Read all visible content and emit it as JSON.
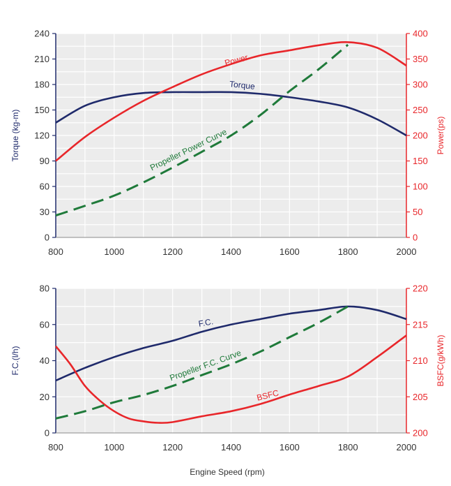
{
  "xlabel": "Engine Speed (rpm)",
  "colors": {
    "plot_bg": "#ececec",
    "grid": "#ffffff",
    "navy": "#1f2a6b",
    "red": "#e8262a",
    "green": "#1f7a3a",
    "axis_text": "#333333"
  },
  "chart_data": [
    {
      "type": "line",
      "x_ticks": [
        "800",
        "1000",
        "1200",
        "1400",
        "1600",
        "1800",
        "2000"
      ],
      "xlim": [
        800,
        2000
      ],
      "ylabel_left": "Torque (kg-m)",
      "ylabel_right": "Power(ps)",
      "ylim_left": [
        0,
        240
      ],
      "ylim_right": [
        0,
        400
      ],
      "y_ticks_left": [
        "0",
        "30",
        "60",
        "90",
        "120",
        "150",
        "180",
        "210",
        "240"
      ],
      "y_ticks_right": [
        "0",
        "50",
        "100",
        "150",
        "200",
        "250",
        "300",
        "350",
        "400"
      ],
      "grid": true,
      "series": [
        {
          "name": "Torque",
          "axis": "left",
          "style": "solid",
          "color": "#1f2a6b",
          "x": [
            800,
            900,
            1000,
            1100,
            1200,
            1300,
            1400,
            1500,
            1600,
            1700,
            1800,
            1900,
            2000
          ],
          "y": [
            135,
            155,
            165,
            170,
            171,
            171,
            171,
            169,
            165,
            160,
            153,
            139,
            120
          ]
        },
        {
          "name": "Power",
          "axis": "right",
          "style": "solid",
          "color": "#e8262a",
          "x": [
            800,
            900,
            1000,
            1100,
            1200,
            1300,
            1400,
            1500,
            1600,
            1700,
            1800,
            1900,
            2000
          ],
          "y": [
            150,
            197,
            235,
            268,
            295,
            320,
            340,
            357,
            367,
            377,
            383,
            372,
            337
          ]
        },
        {
          "name": "Propeller Power Curve",
          "axis": "right",
          "style": "dashed",
          "color": "#1f7a3a",
          "x": [
            800,
            900,
            1000,
            1100,
            1200,
            1300,
            1400,
            1500,
            1600,
            1700,
            1800
          ],
          "y": [
            43,
            62,
            82,
            108,
            137,
            168,
            200,
            240,
            287,
            330,
            378
          ]
        }
      ]
    },
    {
      "type": "line",
      "x_ticks": [
        "800",
        "1000",
        "1200",
        "1400",
        "1600",
        "1800",
        "2000"
      ],
      "xlim": [
        800,
        2000
      ],
      "ylabel_left": "F.C.(l/h)",
      "ylabel_right": "BSFC(g/kWh)",
      "ylim_left": [
        0,
        80
      ],
      "ylim_right": [
        200,
        220
      ],
      "y_ticks_left": [
        "0",
        "20",
        "40",
        "60",
        "80"
      ],
      "y_ticks_right": [
        "200",
        "205",
        "210",
        "215",
        "220"
      ],
      "grid": true,
      "series": [
        {
          "name": "F.C.",
          "axis": "left",
          "style": "solid",
          "color": "#1f2a6b",
          "x": [
            800,
            900,
            1000,
            1100,
            1200,
            1300,
            1400,
            1500,
            1600,
            1700,
            1800,
            1900,
            2000
          ],
          "y": [
            29,
            36,
            42,
            47,
            51,
            56,
            60,
            63,
            66,
            68,
            70,
            68,
            63
          ]
        },
        {
          "name": "BSFC",
          "axis": "right",
          "style": "solid",
          "color": "#e8262a",
          "x": [
            800,
            850,
            900,
            950,
            1000,
            1050,
            1100,
            1150,
            1200,
            1300,
            1400,
            1500,
            1600,
            1700,
            1800,
            1900,
            2000
          ],
          "y": [
            212,
            209.5,
            206.5,
            204.5,
            203,
            202,
            201.6,
            201.4,
            201.5,
            202.3,
            203,
            204,
            205.3,
            206.5,
            207.8,
            210.5,
            213.5
          ]
        },
        {
          "name": "Propeller F.C. Curve",
          "axis": "left",
          "style": "dashed",
          "color": "#1f7a3a",
          "x": [
            800,
            900,
            1000,
            1100,
            1200,
            1300,
            1400,
            1500,
            1600,
            1700,
            1800
          ],
          "y": [
            8,
            12,
            17,
            21,
            26,
            32,
            38,
            45,
            53,
            61,
            70
          ]
        }
      ]
    }
  ]
}
